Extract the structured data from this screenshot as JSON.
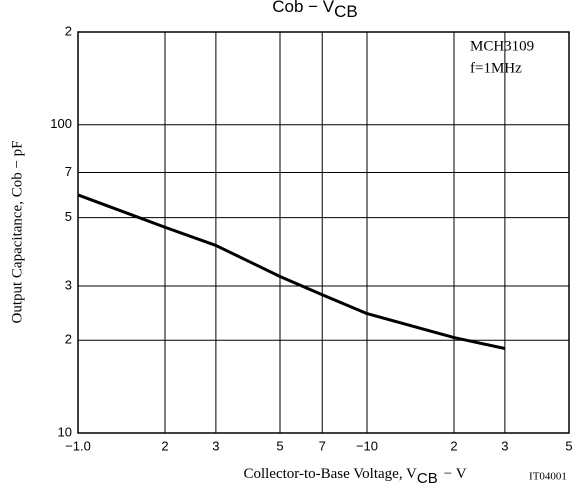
{
  "chart_data": {
    "type": "line",
    "title": {
      "text": "Cob − V",
      "subscript": "CB"
    },
    "x_label": {
      "text": "Collector-to-Base Voltage, V",
      "subscript": "CB",
      "suffix": "− V"
    },
    "y_label": "Output Capacitance, Cob − pF",
    "annotations": [
      "MCH3109",
      "f=1MHz",
      "IT04001"
    ],
    "x_scale": "log",
    "y_scale": "log",
    "grid": true,
    "xlim": [
      1,
      50
    ],
    "ylim": [
      10,
      200
    ],
    "xticks": [
      {
        "value": 1,
        "label": "−1.0"
      },
      2,
      3,
      5,
      7,
      {
        "value": 10,
        "label": "−10"
      },
      {
        "value": 20,
        "label": "2"
      },
      {
        "value": 30,
        "label": "3"
      },
      {
        "value": 50,
        "label": "5"
      }
    ],
    "yticks": [
      10,
      {
        "value": 20,
        "label": "2"
      },
      {
        "value": 30,
        "label": "3"
      },
      {
        "value": 50,
        "label": "5"
      },
      {
        "value": 70,
        "label": "7"
      },
      100,
      {
        "value": 200,
        "label": "2"
      }
    ],
    "x": [
      1,
      2,
      3,
      5,
      7,
      10,
      20,
      30
    ],
    "series": [
      {
        "color": "#000000",
        "values": [
          59.2,
          46.5,
          40.6,
          32.2,
          28.1,
          24.4,
          20.4,
          18.8
        ]
      }
    ]
  }
}
